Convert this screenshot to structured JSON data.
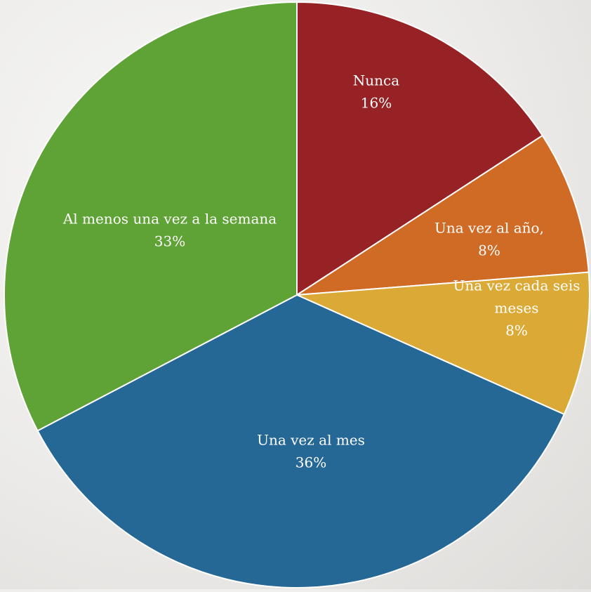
{
  "chart_data": {
    "type": "pie",
    "title": "",
    "slices": [
      {
        "label_lines": [
          "Nunca"
        ],
        "pct": "16%",
        "value": 16,
        "color": "#962225"
      },
      {
        "label_lines": [
          "Una vez al año,"
        ],
        "pct": "8%",
        "value": 8,
        "color": "#d06b26"
      },
      {
        "label_lines": [
          "Una vez cada seis",
          "meses"
        ],
        "pct": "8%",
        "value": 8,
        "color": "#dbaa36"
      },
      {
        "label_lines": [
          "Una vez al mes"
        ],
        "pct": "36%",
        "value": 36,
        "color": "#256795"
      },
      {
        "label_lines": [
          "Al menos una vez a la semana"
        ],
        "pct": "33%",
        "value": 33,
        "color": "#5fa236"
      }
    ],
    "start": "top",
    "direction": "clockwise",
    "legend": "none",
    "data_labels": "inside"
  }
}
